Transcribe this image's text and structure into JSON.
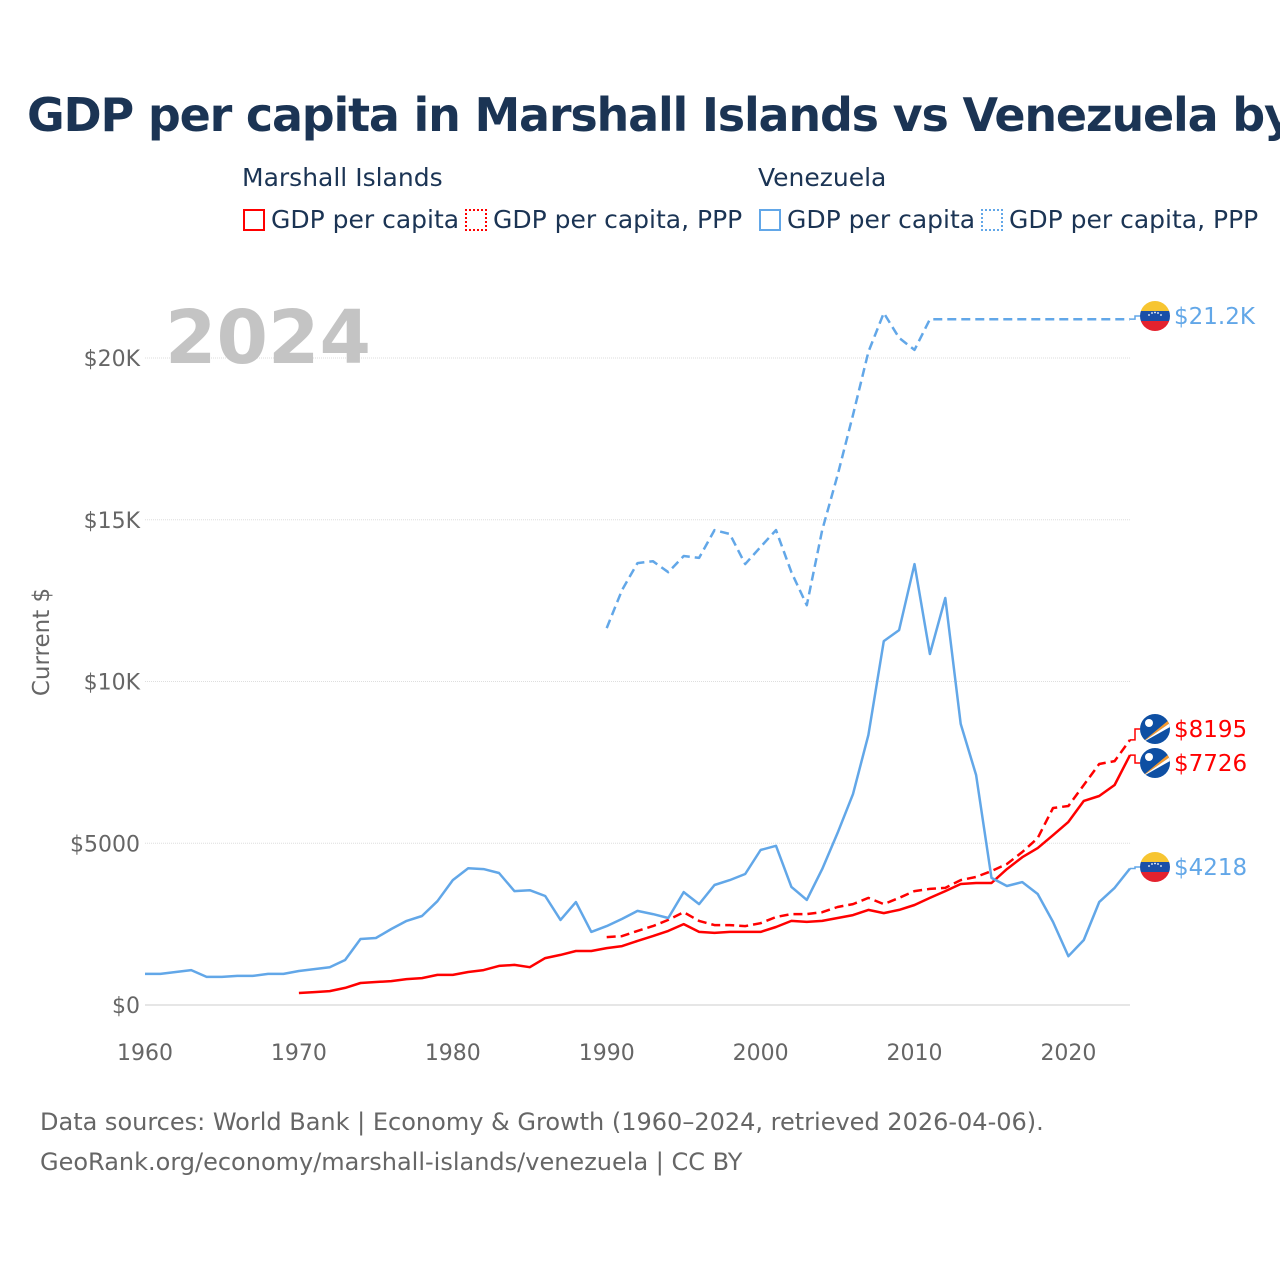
{
  "chart_data": {
    "type": "line",
    "title": "GDP per capita in Marshall Islands vs Venezuela by year",
    "ylabel": "Current $",
    "xlabel": "",
    "current_year": "2024",
    "xlim": [
      1960,
      2024
    ],
    "ylim": [
      0,
      21500
    ],
    "x_ticks": [
      1960,
      1970,
      1980,
      1990,
      2000,
      2010,
      2020
    ],
    "x_tick_labels": [
      "1960",
      "1970",
      "1980",
      "1990",
      "2000",
      "2010",
      "2020"
    ],
    "y_ticks": [
      0,
      5000,
      10000,
      15000,
      20000
    ],
    "y_tick_labels": [
      "$0",
      "$5000",
      "$10K",
      "$15K",
      "$20K"
    ],
    "grid": true,
    "legend": {
      "placement": "top",
      "groups": [
        {
          "name": "Marshall Islands",
          "items": [
            "GDP per capita",
            "GDP per capita, PPP"
          ]
        },
        {
          "name": "Venezuela",
          "items": [
            "GDP per capita",
            "GDP per capita, PPP"
          ]
        }
      ]
    },
    "colors": {
      "marshall": "#ff0000",
      "venezuela": "#62a7e8"
    },
    "series": [
      {
        "name": "Marshall Islands GDP per capita",
        "country": "marshall",
        "style": "solid",
        "end_label": "$7726",
        "start_year": 1970,
        "values": [
          370,
          400,
          430,
          530,
          680,
          710,
          740,
          800,
          830,
          930,
          930,
          1020,
          1080,
          1210,
          1240,
          1170,
          1450,
          1550,
          1670,
          1670,
          1760,
          1820,
          1980,
          2130,
          2290,
          2500,
          2260,
          2230,
          2260,
          2260,
          2260,
          2410,
          2600,
          2570,
          2600,
          2690,
          2780,
          2940,
          2840,
          2940,
          3090,
          3310,
          3520,
          3740,
          3770,
          3770,
          4200,
          4570,
          4850,
          5250,
          5660,
          6310,
          6460,
          6800,
          7726
        ]
      },
      {
        "name": "Marshall Islands GDP per capita, PPP",
        "country": "marshall",
        "style": "dashed",
        "end_label": "$8195",
        "start_year": 1990,
        "values": [
          2100,
          2130,
          2290,
          2440,
          2630,
          2870,
          2600,
          2470,
          2470,
          2440,
          2530,
          2720,
          2810,
          2810,
          2870,
          3030,
          3120,
          3310,
          3120,
          3310,
          3520,
          3590,
          3620,
          3860,
          3960,
          4140,
          4360,
          4730,
          5160,
          6090,
          6150,
          6800,
          7450,
          7540,
          8195
        ]
      },
      {
        "name": "Venezuela GDP per capita",
        "country": "venezuela",
        "style": "solid",
        "end_label": "$4218",
        "start_year": 1960,
        "values": [
          960,
          960,
          1020,
          1080,
          870,
          870,
          900,
          900,
          960,
          960,
          1050,
          1110,
          1170,
          1390,
          2040,
          2070,
          2350,
          2600,
          2750,
          3210,
          3860,
          4230,
          4200,
          4080,
          3520,
          3550,
          3370,
          2630,
          3180,
          2260,
          2440,
          2660,
          2910,
          2810,
          2690,
          3490,
          3120,
          3710,
          3860,
          4050,
          4790,
          4920,
          3650,
          3250,
          4200,
          5320,
          6520,
          8350,
          11250,
          11590,
          13630,
          10850,
          12580,
          8690,
          7110,
          3930,
          3680,
          3800,
          3430,
          2570,
          1510,
          2010,
          3180,
          3620,
          4218
        ]
      },
      {
        "name": "Venezuela GDP per capita, PPP",
        "country": "venezuela",
        "style": "dashed",
        "end_label": "$21.2K",
        "start_year": 1990,
        "values": [
          11650,
          12830,
          13660,
          13720,
          13380,
          13880,
          13820,
          14680,
          14560,
          13630,
          14160,
          14680,
          13380,
          12360,
          14680,
          16380,
          18240,
          20190,
          21390,
          20620,
          20250,
          21200,
          21200,
          21200,
          21200,
          21200,
          21200,
          21200,
          21200,
          21200,
          21200,
          21200,
          21200,
          21200,
          21200
        ]
      }
    ]
  },
  "footer": {
    "line1": "Data sources: World Bank | Economy & Growth (1960–2024, retrieved 2026-04-06).",
    "line2": "GeoRank.org/economy/marshall-islands/venezuela | CC BY"
  }
}
